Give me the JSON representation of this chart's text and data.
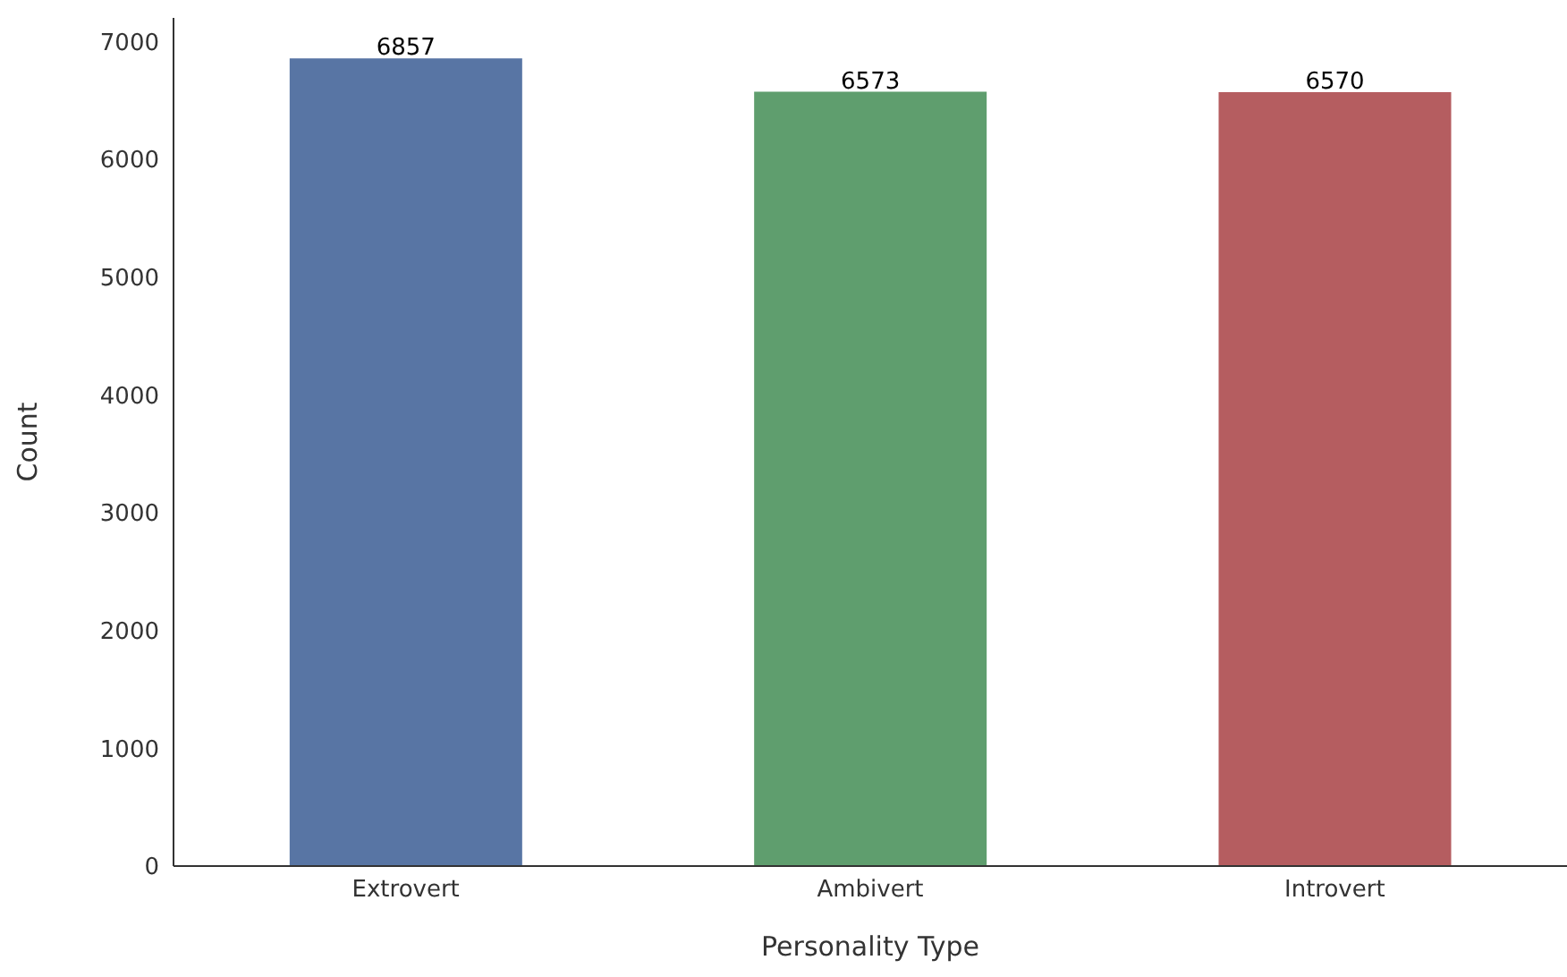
{
  "chart_data": {
    "type": "bar",
    "xlabel": "Personality Type",
    "ylabel": "Count",
    "categories": [
      "Extrovert",
      "Ambivert",
      "Introvert"
    ],
    "values": [
      6857,
      6573,
      6570
    ],
    "colors": [
      "#5875a4",
      "#5f9e6e",
      "#b55d60"
    ],
    "ylim": [
      0,
      7200
    ],
    "yticks": [
      0,
      1000,
      2000,
      3000,
      4000,
      5000,
      6000,
      7000
    ],
    "data_labels": true,
    "grid": false
  }
}
